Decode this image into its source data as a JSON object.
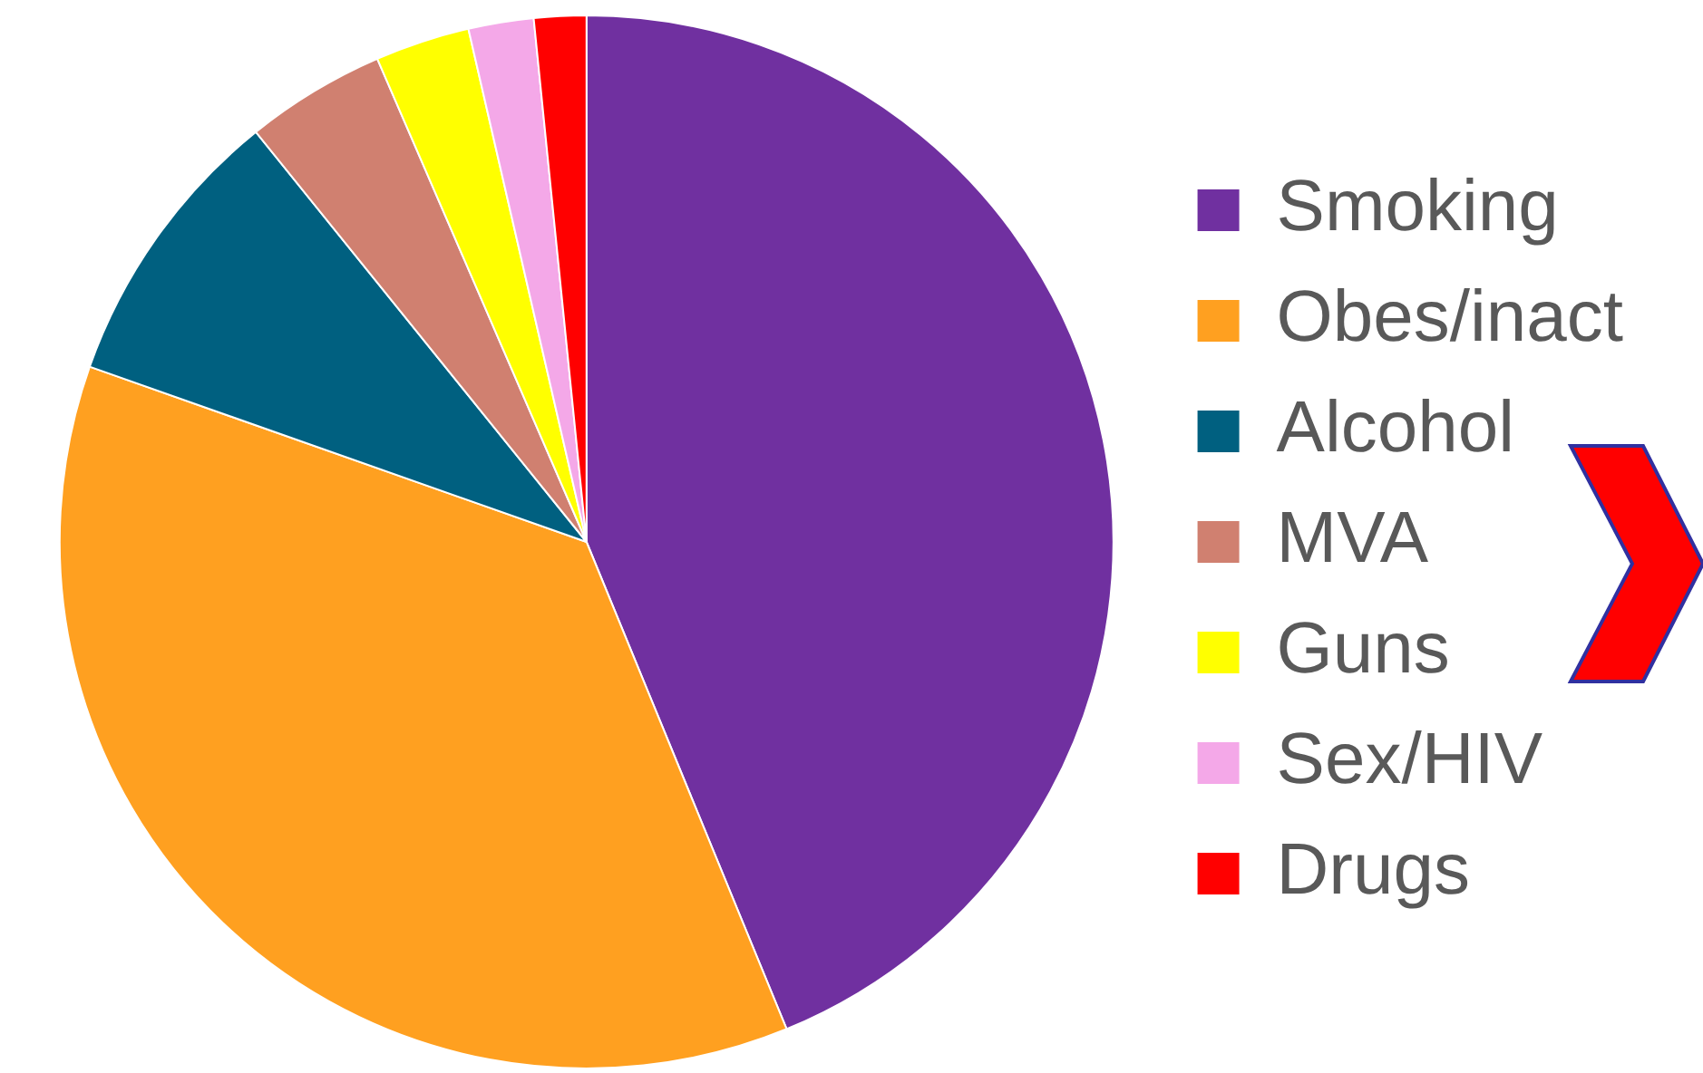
{
  "chart_data": {
    "type": "pie",
    "categories": [
      "Smoking",
      "Obes/inact",
      "Alcohol",
      "MVA",
      "Guns",
      "Sex/HIV",
      "Drugs"
    ],
    "values": [
      43.8,
      36.6,
      8.8,
      4.3,
      2.9,
      2.0,
      1.6
    ],
    "colors": [
      "#7030a0",
      "#ffa020",
      "#006080",
      "#d08070",
      "#ffff00",
      "#f4a8e8",
      "#ff0000"
    ],
    "legend": "right"
  }
}
